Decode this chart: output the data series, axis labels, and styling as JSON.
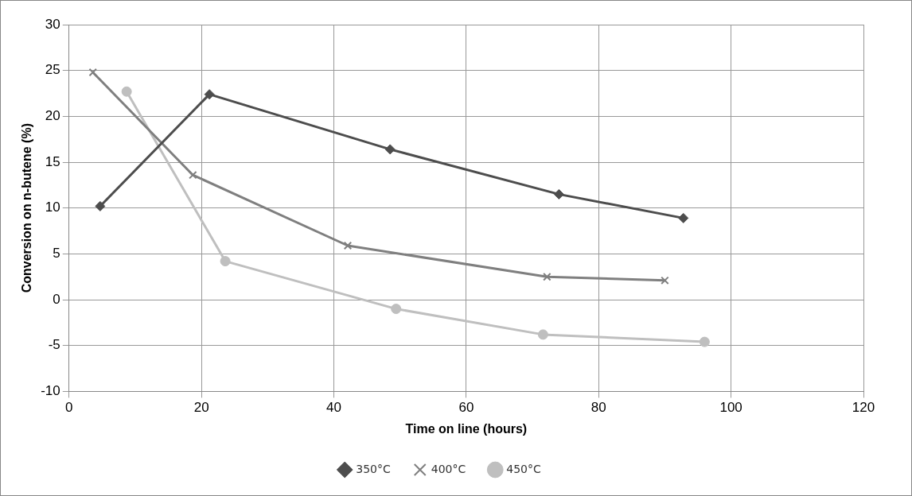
{
  "chart_data": {
    "type": "line",
    "xlabel": "Time on line (hours)",
    "ylabel": "Conversion on n-butene (%)",
    "xlim": [
      0,
      120
    ],
    "xticks": [
      0,
      20,
      40,
      60,
      80,
      100,
      120
    ],
    "ylim": [
      -10,
      30
    ],
    "yticks": [
      -10,
      -5,
      0,
      5,
      10,
      15,
      20,
      25,
      30
    ],
    "grid": true,
    "legend": "bottom",
    "line_style": "solid",
    "series": [
      {
        "name": "350°C",
        "color": "#4d4d4d",
        "marker": "diamond",
        "x": [
          4.7,
          21.2,
          48.5,
          74.0,
          92.8
        ],
        "values": [
          10.2,
          22.4,
          16.4,
          11.5,
          8.9
        ]
      },
      {
        "name": "400°C",
        "color": "#7f7f7f",
        "marker": "cross",
        "x": [
          3.6,
          18.7,
          42.1,
          72.2,
          90.0
        ],
        "values": [
          24.8,
          13.6,
          5.9,
          2.5,
          2.1
        ]
      },
      {
        "name": "450°C",
        "color": "#bfbfbf",
        "marker": "circle",
        "x": [
          8.7,
          23.6,
          49.4,
          71.6,
          96.0
        ],
        "values": [
          22.7,
          4.2,
          -1.0,
          -3.8,
          -4.6
        ]
      }
    ]
  }
}
